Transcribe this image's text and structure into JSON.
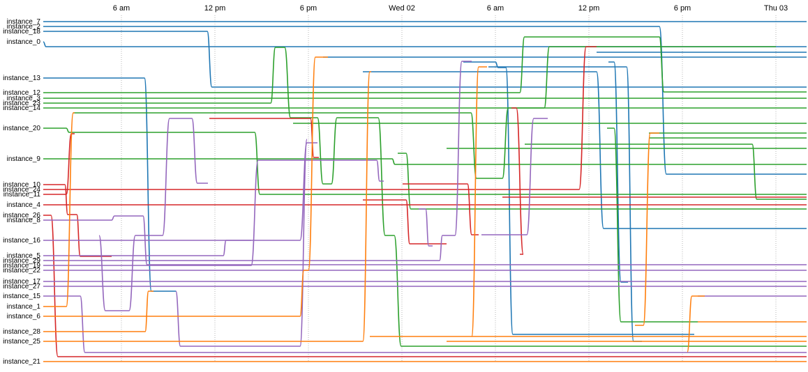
{
  "chart_data": {
    "type": "line",
    "x_ticks": [
      "6 am",
      "12 pm",
      "6 pm",
      "Wed 02",
      "6 am",
      "12 pm",
      "6 pm",
      "Thu 03"
    ],
    "colors": {
      "blue": "#1f77b4",
      "green": "#2ca02c",
      "red": "#d62728",
      "purple": "#9467bd",
      "orange": "#ff7f0e"
    },
    "grid": "vertical-dotted",
    "instances": [
      "instance_7",
      "instance_2",
      "instance_18",
      "instance_0",
      "instance_13",
      "instance_12",
      "instance_3",
      "instance_23",
      "instance_14",
      "instance_20",
      "instance_9",
      "instance_10",
      "instance_24",
      "instance_11",
      "instance_4",
      "instance_26",
      "instance_8",
      "instance_16",
      "instance_5",
      "instance_29",
      "instance_19",
      "instance_22",
      "instance_17",
      "instance_27",
      "instance_15",
      "instance_1",
      "instance_6",
      "instance_28",
      "instance_25",
      "instance_21"
    ]
  }
}
